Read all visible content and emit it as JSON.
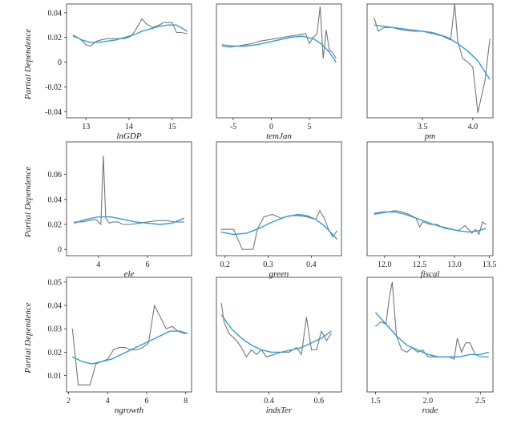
{
  "chart_data": [
    {
      "type": "line",
      "xlabel": "lnGDP",
      "ylabel": "Partial Dependence",
      "xlim": [
        12.55,
        15.45
      ],
      "ylim": [
        -0.045,
        0.047
      ],
      "xticks": [
        13,
        14,
        15
      ],
      "xtick_labels": [
        "13",
        "14",
        "15"
      ],
      "yticks": [
        -0.04,
        -0.02,
        0,
        0.02,
        0.04
      ],
      "ytick_labels": [
        "-0.04",
        "-0.02",
        "0",
        "0.02",
        "0.04"
      ],
      "series": [
        {
          "role": "raw",
          "color": "#777777",
          "x": [
            12.7,
            12.85,
            12.95,
            13.0,
            13.1,
            13.25,
            13.35,
            13.5,
            13.7,
            13.9,
            14.05,
            14.15,
            14.3,
            14.4,
            14.55,
            14.7,
            14.8,
            15.0,
            15.1,
            15.2,
            15.35
          ],
          "y": [
            0.021,
            0.019,
            0.016,
            0.014,
            0.013,
            0.017,
            0.018,
            0.019,
            0.019,
            0.019,
            0.021,
            0.026,
            0.035,
            0.031,
            0.028,
            0.03,
            0.032,
            0.032,
            0.024,
            0.024,
            0.023
          ]
        },
        {
          "role": "fit",
          "color": "#2a9fd8",
          "x": [
            12.7,
            12.9,
            13.1,
            13.3,
            13.5,
            13.7,
            13.9,
            14.1,
            14.3,
            14.5,
            14.7,
            14.9,
            15.1,
            15.35
          ],
          "y": [
            0.022,
            0.018,
            0.016,
            0.016,
            0.017,
            0.018,
            0.02,
            0.022,
            0.025,
            0.027,
            0.029,
            0.03,
            0.03,
            0.025
          ]
        }
      ]
    },
    {
      "type": "line",
      "xlabel": "temJan",
      "ylabel": "",
      "xlim": [
        -7.2,
        9.2
      ],
      "ylim": [
        -0.045,
        0.047
      ],
      "xticks": [
        -5,
        0,
        5
      ],
      "xtick_labels": [
        "-5",
        "0",
        "5"
      ],
      "yticks": [],
      "ytick_labels": [],
      "series": [
        {
          "role": "raw",
          "color": "#777777",
          "x": [
            -6.5,
            -5.5,
            -4.5,
            -3.5,
            -2.5,
            -1.5,
            -0.5,
            0.5,
            1.5,
            2.5,
            3.5,
            4.5,
            5.0,
            5.5,
            6.0,
            6.4,
            6.8,
            7.2,
            7.6,
            8.0,
            8.5
          ],
          "y": [
            0.013,
            0.012,
            0.013,
            0.014,
            0.015,
            0.017,
            0.018,
            0.019,
            0.02,
            0.021,
            0.022,
            0.023,
            0.015,
            0.02,
            0.023,
            0.045,
            0.003,
            0.026,
            0.01,
            0.008,
            0.003
          ]
        },
        {
          "role": "fit",
          "color": "#2a9fd8",
          "x": [
            -6.5,
            -5.0,
            -3.5,
            -2.0,
            -0.5,
            1.0,
            2.5,
            4.0,
            5.5,
            6.5,
            7.5,
            8.5
          ],
          "y": [
            0.014,
            0.013,
            0.013,
            0.014,
            0.016,
            0.018,
            0.02,
            0.021,
            0.019,
            0.015,
            0.009,
            0.0
          ]
        }
      ]
    },
    {
      "type": "line",
      "xlabel": "pm",
      "ylabel": "",
      "xlim": [
        2.95,
        4.2
      ],
      "ylim": [
        -0.045,
        0.047
      ],
      "xticks": [
        3.5,
        4.0
      ],
      "xtick_labels": [
        "3.5",
        "4.0"
      ],
      "yticks": [],
      "ytick_labels": [],
      "series": [
        {
          "role": "raw",
          "color": "#777777",
          "x": [
            3.02,
            3.06,
            3.12,
            3.2,
            3.3,
            3.4,
            3.5,
            3.6,
            3.7,
            3.78,
            3.82,
            3.85,
            3.9,
            3.95,
            4.0,
            4.05,
            4.08,
            4.12,
            4.17
          ],
          "y": [
            0.036,
            0.025,
            0.028,
            0.028,
            0.026,
            0.025,
            0.025,
            0.023,
            0.021,
            0.018,
            0.047,
            0.017,
            0.003,
            0.0,
            -0.004,
            -0.041,
            -0.03,
            -0.015,
            0.019
          ]
        },
        {
          "role": "fit",
          "color": "#2a9fd8",
          "x": [
            3.02,
            3.2,
            3.4,
            3.6,
            3.75,
            3.85,
            3.95,
            4.05,
            4.17
          ],
          "y": [
            0.03,
            0.028,
            0.026,
            0.024,
            0.02,
            0.015,
            0.009,
            0.001,
            -0.014
          ]
        }
      ]
    },
    {
      "type": "line",
      "xlabel": "ele",
      "ylabel": "Partial Dependence",
      "xlim": [
        2.7,
        7.8
      ],
      "ylim": [
        -0.005,
        0.086
      ],
      "xticks": [
        4,
        6
      ],
      "xtick_labels": [
        "4",
        "6"
      ],
      "yticks": [
        0,
        0.02,
        0.04,
        0.06
      ],
      "ytick_labels": [
        "0",
        "0.02",
        "0.04",
        "0.06"
      ],
      "series": [
        {
          "role": "raw",
          "color": "#777777",
          "x": [
            3.0,
            3.3,
            3.6,
            3.9,
            4.1,
            4.2,
            4.3,
            4.45,
            4.6,
            4.8,
            5.0,
            5.3,
            5.7,
            6.0,
            6.4,
            6.8,
            7.1,
            7.3,
            7.5
          ],
          "y": [
            0.022,
            0.022,
            0.023,
            0.024,
            0.02,
            0.075,
            0.025,
            0.021,
            0.022,
            0.022,
            0.02,
            0.02,
            0.021,
            0.022,
            0.023,
            0.023,
            0.022,
            0.022,
            0.022
          ]
        },
        {
          "role": "fit",
          "color": "#2a9fd8",
          "x": [
            3.0,
            3.5,
            4.0,
            4.5,
            5.0,
            5.5,
            6.0,
            6.5,
            7.0,
            7.5
          ],
          "y": [
            0.021,
            0.024,
            0.026,
            0.026,
            0.024,
            0.022,
            0.021,
            0.02,
            0.021,
            0.025
          ]
        }
      ]
    },
    {
      "type": "line",
      "xlabel": "green",
      "ylabel": "",
      "xlim": [
        0.18,
        0.47
      ],
      "ylim": [
        -0.005,
        0.086
      ],
      "xticks": [
        0.2,
        0.3,
        0.4
      ],
      "xtick_labels": [
        "0.2",
        "0.3",
        "0.4"
      ],
      "yticks": [],
      "ytick_labels": [],
      "series": [
        {
          "role": "raw",
          "color": "#777777",
          "x": [
            0.19,
            0.21,
            0.22,
            0.23,
            0.24,
            0.255,
            0.265,
            0.275,
            0.29,
            0.31,
            0.33,
            0.35,
            0.37,
            0.39,
            0.41,
            0.42,
            0.43,
            0.44,
            0.45,
            0.46
          ],
          "y": [
            0.016,
            0.016,
            0.016,
            0.008,
            0.0,
            0.0,
            0.0,
            0.016,
            0.026,
            0.028,
            0.025,
            0.027,
            0.027,
            0.026,
            0.024,
            0.031,
            0.025,
            0.016,
            0.01,
            0.015
          ]
        },
        {
          "role": "fit",
          "color": "#2a9fd8",
          "x": [
            0.19,
            0.22,
            0.25,
            0.28,
            0.31,
            0.34,
            0.37,
            0.39,
            0.41,
            0.43,
            0.46
          ],
          "y": [
            0.014,
            0.012,
            0.013,
            0.017,
            0.022,
            0.026,
            0.028,
            0.027,
            0.024,
            0.019,
            0.008
          ]
        }
      ]
    },
    {
      "type": "line",
      "xlabel": "fiscal",
      "ylabel": "",
      "xlim": [
        11.75,
        13.55
      ],
      "ylim": [
        -0.005,
        0.086
      ],
      "xticks": [
        12.0,
        12.5,
        13.0,
        13.5
      ],
      "xtick_labels": [
        "12.0",
        "12.5",
        "13.0",
        "13.5"
      ],
      "yticks": [],
      "ytick_labels": [],
      "series": [
        {
          "role": "raw",
          "color": "#777777",
          "x": [
            11.85,
            11.95,
            12.05,
            12.15,
            12.25,
            12.35,
            12.45,
            12.5,
            12.55,
            12.65,
            12.75,
            12.85,
            12.95,
            13.05,
            13.15,
            13.25,
            13.3,
            13.35,
            13.4,
            13.45
          ],
          "y": [
            0.028,
            0.029,
            0.03,
            0.031,
            0.03,
            0.028,
            0.025,
            0.018,
            0.022,
            0.02,
            0.02,
            0.017,
            0.016,
            0.015,
            0.019,
            0.013,
            0.016,
            0.012,
            0.022,
            0.02
          ]
        },
        {
          "role": "fit",
          "color": "#2a9fd8",
          "x": [
            11.85,
            12.0,
            12.15,
            12.3,
            12.45,
            12.6,
            12.75,
            12.9,
            13.05,
            13.2,
            13.35,
            13.45
          ],
          "y": [
            0.029,
            0.03,
            0.03,
            0.028,
            0.025,
            0.022,
            0.019,
            0.017,
            0.015,
            0.014,
            0.015,
            0.017
          ]
        }
      ]
    },
    {
      "type": "line",
      "xlabel": "ngrowth",
      "ylabel": "Partial Dependence",
      "xlim": [
        1.9,
        8.3
      ],
      "ylim": [
        0.003,
        0.052
      ],
      "xticks": [
        2,
        4,
        6,
        8
      ],
      "xtick_labels": [
        "2",
        "4",
        "6",
        "8"
      ],
      "yticks": [
        0.01,
        0.02,
        0.03,
        0.04,
        0.05
      ],
      "ytick_labels": [
        "0.01",
        "0.02",
        "0.03",
        "0.04",
        "0.05"
      ],
      "series": [
        {
          "role": "raw",
          "color": "#777777",
          "x": [
            2.2,
            2.5,
            2.8,
            3.1,
            3.4,
            3.7,
            4.0,
            4.3,
            4.6,
            4.9,
            5.2,
            5.5,
            5.8,
            6.1,
            6.4,
            6.7,
            7.0,
            7.3,
            7.6,
            7.9,
            8.1
          ],
          "y": [
            0.03,
            0.006,
            0.006,
            0.006,
            0.015,
            0.016,
            0.017,
            0.021,
            0.022,
            0.022,
            0.021,
            0.021,
            0.022,
            0.024,
            0.04,
            0.035,
            0.03,
            0.031,
            0.029,
            0.028,
            0.028
          ]
        },
        {
          "role": "fit",
          "color": "#2a9fd8",
          "x": [
            2.2,
            2.7,
            3.2,
            3.7,
            4.2,
            4.7,
            5.2,
            5.7,
            6.2,
            6.7,
            7.2,
            7.7,
            8.1
          ],
          "y": [
            0.018,
            0.016,
            0.015,
            0.016,
            0.017,
            0.019,
            0.021,
            0.023,
            0.025,
            0.027,
            0.029,
            0.029,
            0.028
          ]
        }
      ]
    },
    {
      "type": "line",
      "xlabel": "indsTer",
      "ylabel": "",
      "xlim": [
        0.19,
        0.69
      ],
      "ylim": [
        0.003,
        0.052
      ],
      "xticks": [
        0.4,
        0.6
      ],
      "xtick_labels": [
        "0.4",
        "0.6"
      ],
      "yticks": [],
      "ytick_labels": [],
      "series": [
        {
          "role": "raw",
          "color": "#777777",
          "x": [
            0.21,
            0.22,
            0.24,
            0.27,
            0.29,
            0.31,
            0.33,
            0.35,
            0.37,
            0.39,
            0.42,
            0.45,
            0.48,
            0.51,
            0.53,
            0.55,
            0.57,
            0.59,
            0.61,
            0.63,
            0.65
          ],
          "y": [
            0.041,
            0.033,
            0.028,
            0.025,
            0.022,
            0.018,
            0.021,
            0.019,
            0.021,
            0.018,
            0.019,
            0.02,
            0.02,
            0.022,
            0.019,
            0.035,
            0.021,
            0.021,
            0.029,
            0.025,
            0.028
          ]
        },
        {
          "role": "fit",
          "color": "#2a9fd8",
          "x": [
            0.21,
            0.25,
            0.29,
            0.33,
            0.37,
            0.41,
            0.45,
            0.49,
            0.53,
            0.57,
            0.61,
            0.65
          ],
          "y": [
            0.036,
            0.03,
            0.026,
            0.023,
            0.021,
            0.02,
            0.02,
            0.021,
            0.022,
            0.024,
            0.026,
            0.029
          ]
        }
      ]
    },
    {
      "type": "line",
      "xlabel": "rode",
      "ylabel": "",
      "xlim": [
        1.42,
        2.62
      ],
      "ylim": [
        0.003,
        0.052
      ],
      "xticks": [
        1.5,
        2.0,
        2.5
      ],
      "xtick_labels": [
        "1.5",
        "2.0",
        "2.5"
      ],
      "yticks": [],
      "ytick_labels": [],
      "series": [
        {
          "role": "raw",
          "color": "#777777",
          "x": [
            1.5,
            1.55,
            1.6,
            1.63,
            1.66,
            1.7,
            1.75,
            1.8,
            1.85,
            1.9,
            1.95,
            2.0,
            2.05,
            2.1,
            2.15,
            2.2,
            2.25,
            2.28,
            2.32,
            2.36,
            2.4,
            2.45,
            2.5,
            2.55,
            2.58
          ],
          "y": [
            0.031,
            0.033,
            0.032,
            0.043,
            0.05,
            0.027,
            0.021,
            0.02,
            0.022,
            0.02,
            0.021,
            0.018,
            0.018,
            0.018,
            0.018,
            0.018,
            0.017,
            0.026,
            0.02,
            0.024,
            0.024,
            0.019,
            0.018,
            0.018,
            0.018
          ]
        },
        {
          "role": "fit",
          "color": "#2a9fd8",
          "x": [
            1.5,
            1.6,
            1.7,
            1.8,
            1.9,
            2.0,
            2.1,
            2.2,
            2.3,
            2.4,
            2.5,
            2.58
          ],
          "y": [
            0.037,
            0.032,
            0.027,
            0.023,
            0.021,
            0.019,
            0.018,
            0.018,
            0.018,
            0.019,
            0.019,
            0.02
          ]
        }
      ]
    }
  ]
}
